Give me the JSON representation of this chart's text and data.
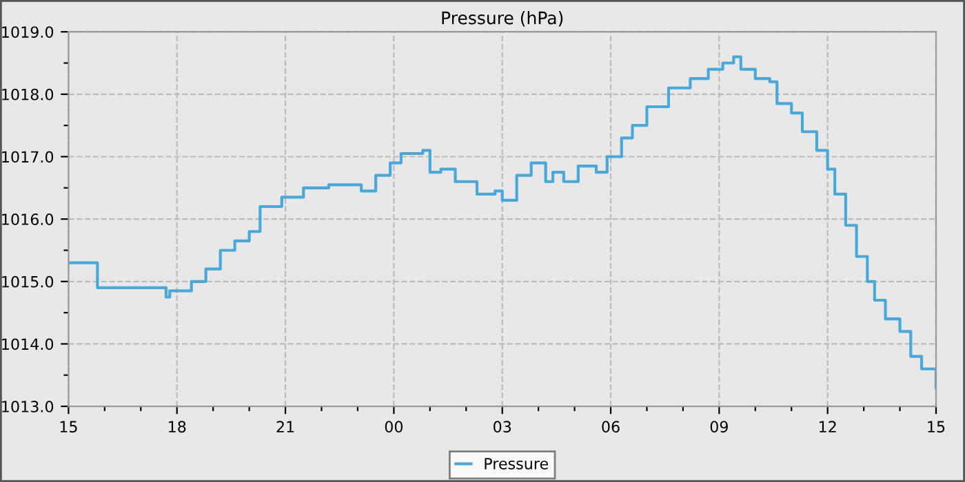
{
  "chart_data": {
    "type": "step",
    "title": "Pressure (hPa)",
    "x": [
      15,
      15.8,
      17.7,
      17.8,
      18,
      18.4,
      18.8,
      19.2,
      19.6,
      20.0,
      20.3,
      20.9,
      21.5,
      22.2,
      22.8,
      23.1,
      23.5,
      23.9,
      24.2,
      24.8,
      25.0,
      25.3,
      25.7,
      26.3,
      26.8,
      27.0,
      27.4,
      27.8,
      28.2,
      28.4,
      28.7,
      29.1,
      29.6,
      29.9,
      30.3,
      30.6,
      31.0,
      31.6,
      32.2,
      32.7,
      33.1,
      33.4,
      33.6,
      34.0,
      34.4,
      34.6,
      35.0,
      35.3,
      35.7,
      36.0,
      36.2,
      36.5,
      36.8,
      37.1,
      37.3,
      37.6,
      38.0,
      38.3,
      38.6,
      39.0
    ],
    "series": [
      {
        "name": "Pressure",
        "color": "#4aa8d8",
        "values": [
          1015.3,
          1014.9,
          1014.75,
          1014.85,
          1014.85,
          1015.0,
          1015.2,
          1015.5,
          1015.65,
          1015.8,
          1016.2,
          1016.35,
          1016.5,
          1016.55,
          1016.55,
          1016.45,
          1016.7,
          1016.9,
          1017.05,
          1017.1,
          1016.75,
          1016.8,
          1016.6,
          1016.4,
          1016.45,
          1016.3,
          1016.7,
          1016.9,
          1016.6,
          1016.75,
          1016.6,
          1016.85,
          1016.75,
          1017.0,
          1017.3,
          1017.5,
          1017.8,
          1018.1,
          1018.25,
          1018.4,
          1018.5,
          1018.6,
          1018.4,
          1018.25,
          1018.2,
          1017.85,
          1017.7,
          1017.4,
          1017.1,
          1016.8,
          1016.4,
          1015.9,
          1015.4,
          1015.0,
          1014.7,
          1014.4,
          1014.2,
          1013.8,
          1013.6,
          1013.3
        ]
      }
    ],
    "xlim": [
      15,
      39
    ],
    "xticks": [
      {
        "value": 15,
        "label": "15"
      },
      {
        "value": 16,
        "label": null
      },
      {
        "value": 17,
        "label": null
      },
      {
        "value": 18,
        "label": "18"
      },
      {
        "value": 19,
        "label": null
      },
      {
        "value": 20,
        "label": null
      },
      {
        "value": 21,
        "label": "21"
      },
      {
        "value": 22,
        "label": null
      },
      {
        "value": 23,
        "label": null
      },
      {
        "value": 24,
        "label": "00"
      },
      {
        "value": 25,
        "label": null
      },
      {
        "value": 26,
        "label": null
      },
      {
        "value": 27,
        "label": "03"
      },
      {
        "value": 28,
        "label": null
      },
      {
        "value": 29,
        "label": null
      },
      {
        "value": 30,
        "label": "06"
      },
      {
        "value": 31,
        "label": null
      },
      {
        "value": 32,
        "label": null
      },
      {
        "value": 33,
        "label": "09"
      },
      {
        "value": 34,
        "label": null
      },
      {
        "value": 35,
        "label": null
      },
      {
        "value": 36,
        "label": "12"
      },
      {
        "value": 37,
        "label": null
      },
      {
        "value": 38,
        "label": null
      },
      {
        "value": 39,
        "label": "15"
      }
    ],
    "ylim": [
      1013.0,
      1019.0
    ],
    "yticks": [
      {
        "value": 1013,
        "label": "1013.0"
      },
      {
        "value": 1013.5,
        "label": null
      },
      {
        "value": 1014,
        "label": "1014.0"
      },
      {
        "value": 1014.5,
        "label": null
      },
      {
        "value": 1015,
        "label": "1015.0"
      },
      {
        "value": 1015.5,
        "label": null
      },
      {
        "value": 1016,
        "label": "1016.0"
      },
      {
        "value": 1016.5,
        "label": null
      },
      {
        "value": 1017,
        "label": "1017.0"
      },
      {
        "value": 1017.5,
        "label": null
      },
      {
        "value": 1018,
        "label": "1018.0"
      },
      {
        "value": 1018.5,
        "label": null
      },
      {
        "value": 1019,
        "label": "1019.0"
      }
    ],
    "grid": true,
    "legend": "bottom",
    "line_style": "solid",
    "marker": "none"
  }
}
